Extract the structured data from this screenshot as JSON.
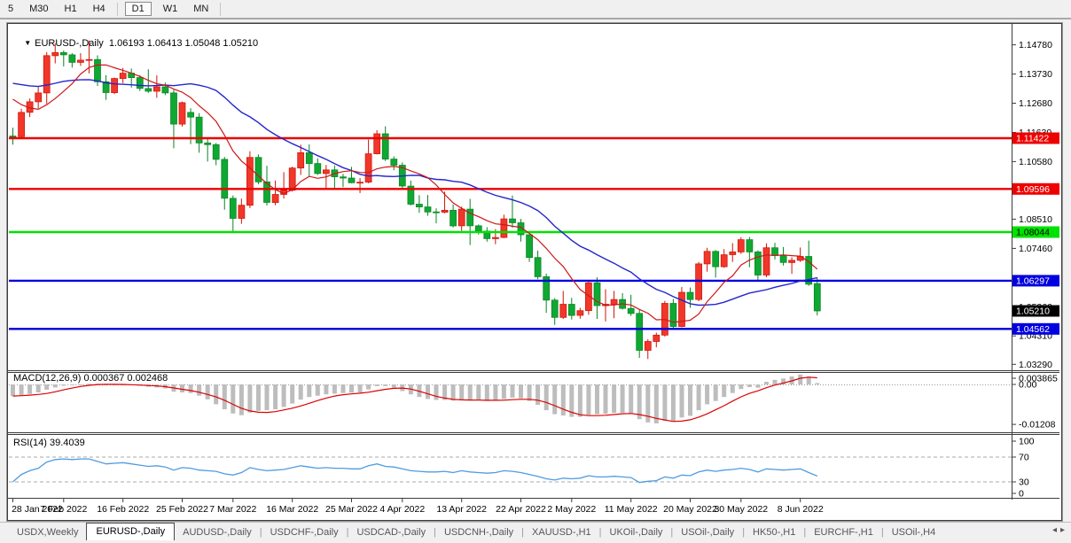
{
  "toolbar": {
    "timeframes": [
      "5",
      "M30",
      "H1",
      "H4",
      "D1",
      "W1",
      "MN"
    ],
    "active": "D1",
    "separators_after": [
      "H4",
      "MN"
    ]
  },
  "info_line": {
    "dropdown_icon": "▼",
    "symbol": "EURUSD-,Daily",
    "ohlc": "1.06193 1.06413 1.05048 1.05210"
  },
  "tabs": {
    "items": [
      "USDX,Weekly",
      "EURUSD-,Daily",
      "AUDUSD-,Daily",
      "USDCHF-,Daily",
      "USDCAD-,Daily",
      "USDCNH-,Daily",
      "XAUUSD-,H1",
      "UKOil-,Daily",
      "USOil-,Daily",
      "HK50-,H1",
      "EURCHF-,H1",
      "USOil-,H4"
    ],
    "active": "EURUSD-,Daily",
    "scroll_left": "◂",
    "scroll_right": "▸"
  },
  "colors": {
    "bull": "#f0372a",
    "bull_border": "#cf1508",
    "bear": "#0fa832",
    "bear_border": "#0a8424",
    "ma_fast": "#cf1717",
    "ma_slow": "#2525cd",
    "macd_hist": "#bdbdbd",
    "macd_signal": "#dd0000",
    "rsi_line": "#4f9ce0",
    "level_dash": "#bbbbbb",
    "axis_line": "#3c3c3c",
    "hline_red": "#ee0000",
    "hline_green": "#00e200",
    "hline_blue": "#0000e0",
    "current_flag": "#000000"
  },
  "chart_data": {
    "type": "candlestick",
    "symbol": "EURUSD-",
    "timeframe": "Daily",
    "ohlc_display": {
      "open": "1.06193",
      "high": "1.06413",
      "low": "1.05048",
      "close": "1.05210"
    },
    "candles": [
      [
        1.115,
        1.118,
        1.1119,
        1.1148
      ],
      [
        1.1148,
        1.1248,
        1.114,
        1.1235
      ],
      [
        1.1235,
        1.1285,
        1.1218,
        1.1273
      ],
      [
        1.1273,
        1.133,
        1.125,
        1.1305
      ],
      [
        1.1305,
        1.1452,
        1.1266,
        1.1439
      ],
      [
        1.1439,
        1.1483,
        1.1411,
        1.145
      ],
      [
        1.145,
        1.1458,
        1.14,
        1.1442
      ],
      [
        1.1442,
        1.1448,
        1.1396,
        1.1415
      ],
      [
        1.1415,
        1.1448,
        1.1402,
        1.1423
      ],
      [
        1.1423,
        1.1494,
        1.1375,
        1.1425
      ],
      [
        1.1425,
        1.144,
        1.133,
        1.1345
      ],
      [
        1.1345,
        1.1369,
        1.128,
        1.1306
      ],
      [
        1.1306,
        1.136,
        1.1301,
        1.1357
      ],
      [
        1.1357,
        1.1395,
        1.134,
        1.1376
      ],
      [
        1.1376,
        1.1393,
        1.1324,
        1.136
      ],
      [
        1.136,
        1.1369,
        1.1312,
        1.1321
      ],
      [
        1.1321,
        1.139,
        1.1305,
        1.1311
      ],
      [
        1.1311,
        1.1368,
        1.1287,
        1.1327
      ],
      [
        1.1327,
        1.1342,
        1.1297,
        1.1305
      ],
      [
        1.1305,
        1.1316,
        1.1106,
        1.1193
      ],
      [
        1.1193,
        1.1274,
        1.1184,
        1.127
      ],
      [
        1.1235,
        1.125,
        1.1121,
        1.1218
      ],
      [
        1.1218,
        1.1232,
        1.109,
        1.1125
      ],
      [
        1.1125,
        1.114,
        1.1058,
        1.1119
      ],
      [
        1.1119,
        1.1125,
        1.1045,
        1.1066
      ],
      [
        1.1066,
        1.1075,
        1.0885,
        1.0926
      ],
      [
        1.0926,
        1.0936,
        1.0806,
        1.0854
      ],
      [
        1.0854,
        1.0925,
        1.0834,
        1.0901
      ],
      [
        1.0901,
        1.1095,
        1.0891,
        1.1073
      ],
      [
        1.1073,
        1.1084,
        1.0977,
        1.0985
      ],
      [
        1.0985,
        1.1043,
        1.09,
        1.0911
      ],
      [
        1.0911,
        1.099,
        1.0901,
        1.094
      ],
      [
        1.094,
        1.102,
        1.0925,
        1.0955
      ],
      [
        1.0955,
        1.104,
        1.095,
        1.1035
      ],
      [
        1.1035,
        1.1119,
        1.101,
        1.109
      ],
      [
        1.109,
        1.112,
        1.1003,
        1.1051
      ],
      [
        1.1051,
        1.107,
        1.101,
        1.1015
      ],
      [
        1.1015,
        1.1046,
        1.0962,
        1.1028
      ],
      [
        1.1028,
        1.1044,
        1.0963,
        1.1003
      ],
      [
        1.1003,
        1.1014,
        1.0966,
        1.0999
      ],
      [
        1.0999,
        1.1039,
        1.098,
        1.0982
      ],
      [
        1.0982,
        1.0999,
        1.0945,
        1.0984
      ],
      [
        1.0984,
        1.1137,
        1.098,
        1.1086
      ],
      [
        1.1086,
        1.1171,
        1.1084,
        1.1158
      ],
      [
        1.1158,
        1.1185,
        1.106,
        1.1067
      ],
      [
        1.1067,
        1.1077,
        1.1027,
        1.1045
      ],
      [
        1.1045,
        1.1055,
        1.096,
        1.097
      ],
      [
        1.097,
        1.099,
        1.09,
        1.0905
      ],
      [
        1.0905,
        1.0937,
        1.0874,
        1.0895
      ],
      [
        1.0895,
        1.0938,
        1.0863,
        1.0877
      ],
      [
        1.0877,
        1.089,
        1.0836,
        1.0876
      ],
      [
        1.0876,
        1.095,
        1.0872,
        1.0883
      ],
      [
        1.0883,
        1.0904,
        1.0821,
        1.0827
      ],
      [
        1.0827,
        1.0896,
        1.0809,
        1.0887
      ],
      [
        1.0887,
        1.0924,
        1.0758,
        1.0827
      ],
      [
        1.0827,
        1.0832,
        1.0796,
        1.0808
      ],
      [
        1.0808,
        1.0822,
        1.077,
        1.0781
      ],
      [
        1.0781,
        1.0815,
        1.0761,
        1.0785
      ],
      [
        1.0785,
        1.0867,
        1.0783,
        1.0852
      ],
      [
        1.0852,
        1.0936,
        1.082,
        1.0838
      ],
      [
        1.0838,
        1.0852,
        1.077,
        1.0795
      ],
      [
        1.0795,
        1.0797,
        1.0697,
        1.0713
      ],
      [
        1.0713,
        1.0738,
        1.0635,
        1.0644
      ],
      [
        1.0644,
        1.0655,
        1.0514,
        1.056
      ],
      [
        1.056,
        1.0567,
        1.0471,
        1.0498
      ],
      [
        1.0498,
        1.0593,
        1.0492,
        1.0545
      ],
      [
        1.0545,
        1.0568,
        1.049,
        1.0505
      ],
      [
        1.0505,
        1.0532,
        1.0493,
        1.0522
      ],
      [
        1.0522,
        1.0632,
        1.0507,
        1.0622
      ],
      [
        1.0622,
        1.0642,
        1.0492,
        1.054
      ],
      [
        1.054,
        1.0599,
        1.0483,
        1.0545
      ],
      [
        1.0545,
        1.0593,
        1.0495,
        1.0562
      ],
      [
        1.0562,
        1.0585,
        1.0526,
        1.053
      ],
      [
        1.053,
        1.0579,
        1.0503,
        1.0512
      ],
      [
        1.0512,
        1.0525,
        1.0352,
        1.0379
      ],
      [
        1.0379,
        1.0419,
        1.0348,
        1.0411
      ],
      [
        1.0411,
        1.0443,
        1.039,
        1.0434
      ],
      [
        1.0434,
        1.0557,
        1.0429,
        1.0548
      ],
      [
        1.0548,
        1.0564,
        1.0459,
        1.0465
      ],
      [
        1.0465,
        1.0607,
        1.0462,
        1.0588
      ],
      [
        1.0588,
        1.0605,
        1.0532,
        1.0562
      ],
      [
        1.0562,
        1.0697,
        1.0556,
        1.069
      ],
      [
        1.069,
        1.0748,
        1.0662,
        1.0735
      ],
      [
        1.0735,
        1.074,
        1.0641,
        1.068
      ],
      [
        1.068,
        1.0743,
        1.0676,
        1.0723
      ],
      [
        1.0723,
        1.0765,
        1.0697,
        1.0733
      ],
      [
        1.0733,
        1.0786,
        1.0726,
        1.0777
      ],
      [
        1.0777,
        1.0787,
        1.0678,
        1.0733
      ],
      [
        1.0733,
        1.0739,
        1.0627,
        1.065
      ],
      [
        1.065,
        1.0764,
        1.0642,
        1.0748
      ],
      [
        1.0748,
        1.0766,
        1.0706,
        1.072
      ],
      [
        1.072,
        1.0751,
        1.0684,
        1.0695
      ],
      [
        1.0695,
        1.0714,
        1.0654,
        1.0703
      ],
      [
        1.0703,
        1.0749,
        1.0697,
        1.0717
      ],
      [
        1.0717,
        1.0774,
        1.0611,
        1.0617
      ],
      [
        1.06193,
        1.06413,
        1.05048,
        1.0521
      ]
    ],
    "prehistory_closes": [
      1.131,
      1.1335,
      1.136,
      1.135,
      1.133,
      1.1315,
      1.13,
      1.134,
      1.138,
      1.1415,
      1.144,
      1.145,
      1.1435,
      1.1415,
      1.1392,
      1.137,
      1.1342,
      1.1308,
      1.127,
      1.1235,
      1.1195
    ],
    "ma_fast_period": 8,
    "ma_slow_period": 21,
    "hlines": [
      {
        "price": 1.11422,
        "color": "#ee0000",
        "label_fg": "#ffffff"
      },
      {
        "price": 1.09596,
        "color": "#ee0000",
        "label_fg": "#ffffff"
      },
      {
        "price": 1.08044,
        "color": "#00e200",
        "label_fg": "#000000"
      },
      {
        "price": 1.06297,
        "color": "#0000e0",
        "label_fg": "#ffffff"
      },
      {
        "price": 1.04562,
        "color": "#0000e0",
        "label_fg": "#ffffff"
      }
    ],
    "current_price_flag": {
      "price": 1.0521,
      "bg": "#000000",
      "fg": "#ffffff",
      "label": "1.05210"
    },
    "price_ticks": [
      "1.14780",
      "1.13730",
      "1.12680",
      "1.11630",
      "1.10580",
      "1.08510",
      "1.07460",
      "1.05360",
      "1.04310",
      "1.03290"
    ],
    "date_ticks": [
      [
        0,
        "28 Jan 2022"
      ],
      [
        6,
        "7 Feb 2022"
      ],
      [
        13,
        "16 Feb 2022"
      ],
      [
        20,
        "25 Feb 2022"
      ],
      [
        26,
        "7 Mar 2022"
      ],
      [
        33,
        "16 Mar 2022"
      ],
      [
        40,
        "25 Mar 2022"
      ],
      [
        46,
        "4 Apr 2022"
      ],
      [
        53,
        "13 Apr 2022"
      ],
      [
        60,
        "22 Apr 2022"
      ],
      [
        66,
        "2 May 2022"
      ],
      [
        73,
        "11 May 2022"
      ],
      [
        80,
        "20 May 2022"
      ],
      [
        86,
        "30 May 2022"
      ],
      [
        93,
        "8 Jun 2022"
      ]
    ],
    "macd": {
      "label": "MACD(12,26,9) 0.000367 0.002468",
      "params": "12,26,9",
      "main_value": "0.000367",
      "signal_value": "0.002468",
      "axis": [
        0.003865,
        0,
        -0.01208
      ],
      "axis_labels": [
        "0.003865",
        "0.00",
        "-0.01208"
      ],
      "signal_period": 5,
      "histogram": [
        -0.0035,
        -0.0033,
        -0.0029,
        -0.0024,
        -0.0016,
        -0.0009,
        -0.0004,
        -0.0002,
        0.0,
        0.0002,
        0.0002,
        -0.0001,
        -0.0002,
        -0.0001,
        -0.0002,
        -0.0004,
        -0.0007,
        -0.0009,
        -0.0012,
        -0.0022,
        -0.0024,
        -0.0026,
        -0.0034,
        -0.0045,
        -0.006,
        -0.0075,
        -0.0088,
        -0.0093,
        -0.0085,
        -0.008,
        -0.0078,
        -0.0075,
        -0.0068,
        -0.0058,
        -0.0046,
        -0.0038,
        -0.0034,
        -0.003,
        -0.0028,
        -0.0026,
        -0.0025,
        -0.0024,
        -0.0015,
        -0.0005,
        -0.0005,
        -0.001,
        -0.002,
        -0.003,
        -0.0038,
        -0.0044,
        -0.0047,
        -0.0047,
        -0.0049,
        -0.0046,
        -0.0047,
        -0.0048,
        -0.005,
        -0.0049,
        -0.0044,
        -0.004,
        -0.0042,
        -0.005,
        -0.0062,
        -0.0078,
        -0.009,
        -0.0094,
        -0.0098,
        -0.0098,
        -0.0092,
        -0.009,
        -0.0089,
        -0.0086,
        -0.0086,
        -0.0089,
        -0.0105,
        -0.0115,
        -0.0118,
        -0.011,
        -0.0112,
        -0.01,
        -0.0095,
        -0.0078,
        -0.006,
        -0.005,
        -0.0038,
        -0.0026,
        -0.0014,
        -0.0008,
        -0.001,
        0.0008,
        0.0014,
        0.0018,
        0.0024,
        0.003,
        0.0024,
        0.0004
      ]
    },
    "rsi": {
      "label": "RSI(14) 39.4039",
      "period": "14",
      "value": "39.4039",
      "levels": [
        70,
        30
      ],
      "axis": [
        100,
        70,
        30,
        0
      ],
      "values": [
        30,
        42,
        48,
        52,
        62,
        66,
        67,
        66,
        67,
        67,
        63,
        59,
        60,
        61,
        59,
        57,
        55,
        56,
        54,
        49,
        53,
        52,
        49,
        48,
        47,
        43,
        41,
        45,
        53,
        50,
        48,
        49,
        50,
        53,
        56,
        54,
        52,
        53,
        52,
        52,
        51,
        51,
        56,
        59,
        55,
        54,
        51,
        48,
        47,
        46,
        46,
        47,
        45,
        48,
        46,
        45,
        44,
        45,
        48,
        47,
        45,
        42,
        39,
        35,
        33,
        36,
        35,
        36,
        40,
        38,
        38,
        39,
        38,
        37,
        29,
        31,
        32,
        38,
        36,
        41,
        40,
        46,
        49,
        47,
        49,
        50,
        52,
        50,
        46,
        51,
        50,
        49,
        50,
        51,
        45,
        39.4
      ]
    }
  }
}
